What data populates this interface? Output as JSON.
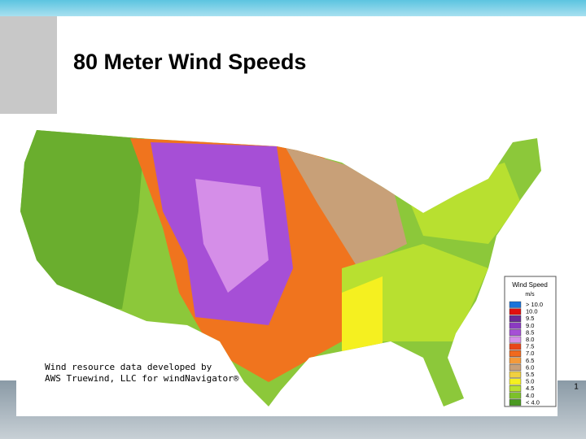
{
  "title": "80 Meter Wind Speeds",
  "legend": {
    "title": "Wind Speed",
    "unit": "m/s",
    "items": [
      {
        "label": "> 10.0",
        "color": "#1a73d9"
      },
      {
        "label": "10.0",
        "color": "#e01010"
      },
      {
        "label": "9.5",
        "color": "#6a2a9a"
      },
      {
        "label": "9.0",
        "color": "#8a3ac0"
      },
      {
        "label": "8.5",
        "color": "#a64fd6"
      },
      {
        "label": "8.0",
        "color": "#d58ee8"
      },
      {
        "label": "7.5",
        "color": "#e8451a"
      },
      {
        "label": "7.0",
        "color": "#f06a1e"
      },
      {
        "label": "6.5",
        "color": "#f39a3a"
      },
      {
        "label": "6.0",
        "color": "#c8a078"
      },
      {
        "label": "5.5",
        "color": "#f0d040"
      },
      {
        "label": "5.0",
        "color": "#f5f020"
      },
      {
        "label": "4.5",
        "color": "#b8e030"
      },
      {
        "label": "4.0",
        "color": "#7cc02a"
      },
      {
        "label": "< 4.0",
        "color": "#4a9a20"
      }
    ]
  },
  "credit": {
    "line1": "Wind resource data developed by",
    "line2": "AWS Truewind, LLC for windNavigator®"
  },
  "slide_number": "1"
}
